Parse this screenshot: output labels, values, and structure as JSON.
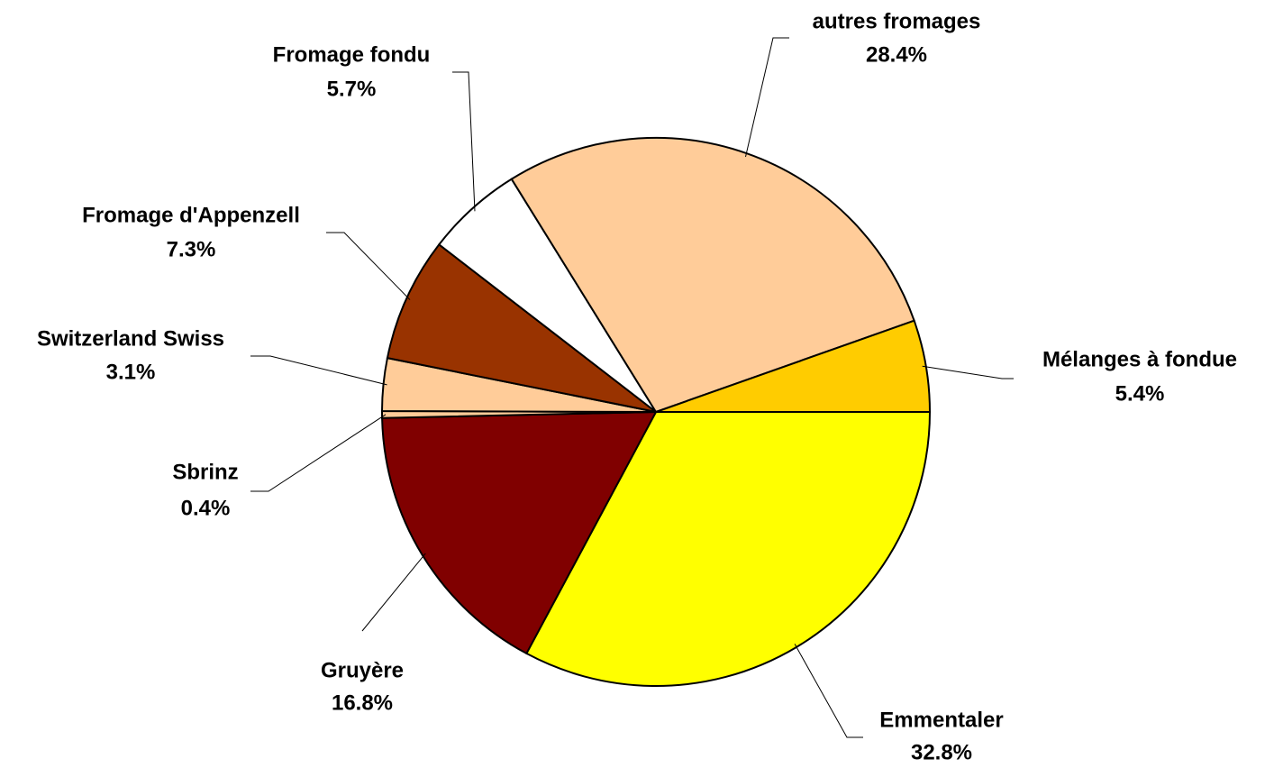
{
  "chart_data": {
    "type": "pie",
    "categories": [
      "Emmentaler",
      "Gruyère",
      "Sbrinz",
      "Switzerland Swiss",
      "Fromage d'Appenzell",
      "Fromage fondu",
      "autres fromages",
      "Mélanges à fondue"
    ],
    "values": [
      32.8,
      16.8,
      0.4,
      3.1,
      7.3,
      5.7,
      28.4,
      5.4
    ],
    "value_labels": [
      "32.8%",
      "16.8%",
      "0.4%",
      "3.1%",
      "7.3%",
      "5.7%",
      "28.4%",
      "5.4%"
    ],
    "colors": [
      "#ffff00",
      "#800000",
      "#ffcc99",
      "#ffcc99",
      "#993300",
      "#ffffff",
      "#ffcc99",
      "#ffcc00"
    ]
  }
}
